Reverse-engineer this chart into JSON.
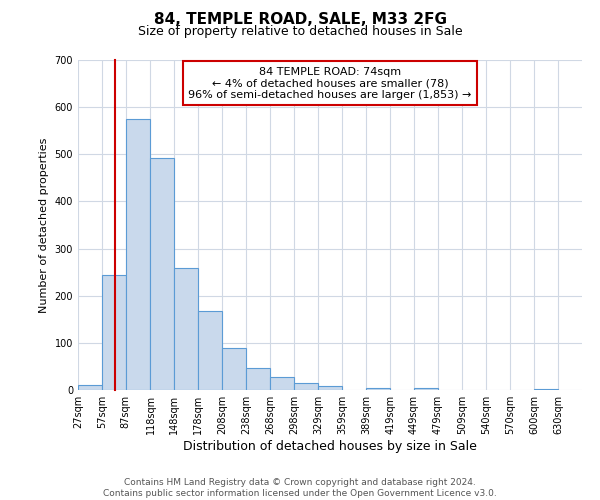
{
  "title": "84, TEMPLE ROAD, SALE, M33 2FG",
  "subtitle": "Size of property relative to detached houses in Sale",
  "xlabel": "Distribution of detached houses by size in Sale",
  "ylabel": "Number of detached properties",
  "bar_left_edges": [
    27,
    57,
    87,
    118,
    148,
    178,
    208,
    238,
    268,
    298,
    329,
    359,
    389,
    419,
    449,
    479,
    509,
    540,
    570,
    600
  ],
  "bar_heights": [
    10,
    245,
    575,
    493,
    258,
    168,
    90,
    46,
    27,
    15,
    8,
    0,
    5,
    0,
    4,
    0,
    0,
    0,
    0,
    3
  ],
  "bar_widths": [
    30,
    30,
    31,
    30,
    30,
    30,
    30,
    30,
    30,
    31,
    30,
    30,
    30,
    30,
    30,
    30,
    31,
    30,
    30,
    30
  ],
  "tick_labels": [
    "27sqm",
    "57sqm",
    "87sqm",
    "118sqm",
    "148sqm",
    "178sqm",
    "208sqm",
    "238sqm",
    "268sqm",
    "298sqm",
    "329sqm",
    "359sqm",
    "389sqm",
    "419sqm",
    "449sqm",
    "479sqm",
    "509sqm",
    "540sqm",
    "570sqm",
    "600sqm",
    "630sqm"
  ],
  "xlim": [
    27,
    660
  ],
  "ylim": [
    0,
    700
  ],
  "yticks": [
    0,
    100,
    200,
    300,
    400,
    500,
    600,
    700
  ],
  "bar_color": "#c9d9ec",
  "bar_edge_color": "#5b9bd5",
  "property_line_x": 74,
  "property_line_color": "#cc0000",
  "annotation_text": "84 TEMPLE ROAD: 74sqm\n← 4% of detached houses are smaller (78)\n96% of semi-detached houses are larger (1,853) →",
  "annotation_box_color": "#ffffff",
  "annotation_box_edge_color": "#cc0000",
  "footer_line1": "Contains HM Land Registry data © Crown copyright and database right 2024.",
  "footer_line2": "Contains public sector information licensed under the Open Government Licence v3.0.",
  "bg_color": "#ffffff",
  "grid_color": "#d0d8e4",
  "title_fontsize": 11,
  "subtitle_fontsize": 9,
  "xlabel_fontsize": 9,
  "ylabel_fontsize": 8,
  "tick_fontsize": 7,
  "annotation_fontsize": 8,
  "footer_fontsize": 6.5
}
